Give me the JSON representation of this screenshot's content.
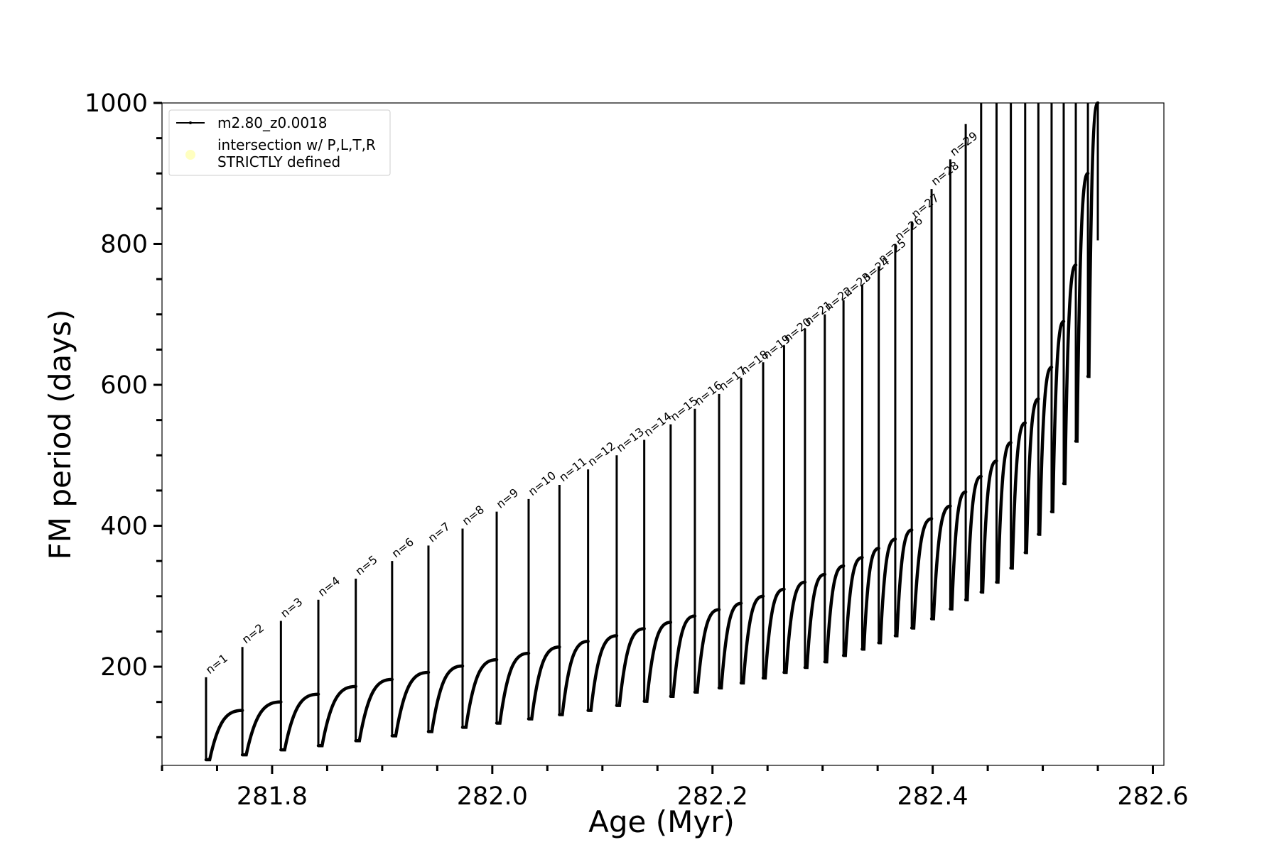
{
  "chart_data": {
    "type": "line",
    "xlabel": "Age (Myr)",
    "ylabel": "FM period (days)",
    "xlim": [
      281.7,
      282.61
    ],
    "ylim": [
      60,
      1000
    ],
    "x_ticks": [
      281.8,
      282.0,
      282.2,
      282.4,
      282.6
    ],
    "x_tick_labels": [
      "281.8",
      "282.0",
      "282.2",
      "282.4",
      "282.6"
    ],
    "y_ticks": [
      200,
      400,
      600,
      800,
      1000
    ],
    "y_tick_labels": [
      "200",
      "400",
      "600",
      "800",
      "1000"
    ],
    "grid": false,
    "legend": {
      "position": "top-left",
      "entries": [
        {
          "label": "m2.80_z0.0018",
          "marker": "line",
          "color": "#000000"
        },
        {
          "label_lines": [
            "intersection w/ P,L,T,R",
            "STRICTLY defined"
          ],
          "marker": "circle",
          "color": "#ffffc0"
        }
      ]
    },
    "series": [
      {
        "name": "m2.80_z0.0018",
        "color": "#000000",
        "pulses": [
          {
            "n": "n=1",
            "age": 281.74,
            "peak": 185,
            "min": 68,
            "plateau": 138
          },
          {
            "n": "n=2",
            "age": 281.773,
            "peak": 228,
            "min": 75,
            "plateau": 150
          },
          {
            "n": "n=3",
            "age": 281.808,
            "peak": 265,
            "min": 82,
            "plateau": 161
          },
          {
            "n": "n=4",
            "age": 281.842,
            "peak": 295,
            "min": 88,
            "plateau": 172
          },
          {
            "n": "n=5",
            "age": 281.876,
            "peak": 325,
            "min": 95,
            "plateau": 182
          },
          {
            "n": "n=6",
            "age": 281.909,
            "peak": 350,
            "min": 102,
            "plateau": 192
          },
          {
            "n": "n=7",
            "age": 281.942,
            "peak": 372,
            "min": 108,
            "plateau": 201
          },
          {
            "n": "n=8",
            "age": 281.973,
            "peak": 396,
            "min": 114,
            "plateau": 210
          },
          {
            "n": "n=9",
            "age": 282.004,
            "peak": 420,
            "min": 120,
            "plateau": 219
          },
          {
            "n": "n=10",
            "age": 282.033,
            "peak": 438,
            "min": 126,
            "plateau": 228
          },
          {
            "n": "n=11",
            "age": 282.061,
            "peak": 458,
            "min": 132,
            "plateau": 236
          },
          {
            "n": "n=12",
            "age": 282.087,
            "peak": 480,
            "min": 138,
            "plateau": 244
          },
          {
            "n": "n=13",
            "age": 282.113,
            "peak": 500,
            "min": 145,
            "plateau": 254
          },
          {
            "n": "n=14",
            "age": 282.138,
            "peak": 522,
            "min": 151,
            "plateau": 263
          },
          {
            "n": "n=15",
            "age": 282.162,
            "peak": 544,
            "min": 158,
            "plateau": 272
          },
          {
            "n": "n=16",
            "age": 282.184,
            "peak": 566,
            "min": 164,
            "plateau": 281
          },
          {
            "n": "n=17",
            "age": 282.206,
            "peak": 587,
            "min": 170,
            "plateau": 290
          },
          {
            "n": "n=18",
            "age": 282.226,
            "peak": 610,
            "min": 177,
            "plateau": 300
          },
          {
            "n": "n=19",
            "age": 282.246,
            "peak": 632,
            "min": 184,
            "plateau": 310
          },
          {
            "n": "n=20",
            "age": 282.265,
            "peak": 656,
            "min": 192,
            "plateau": 320
          },
          {
            "n": "n=21",
            "age": 282.284,
            "peak": 680,
            "min": 199,
            "plateau": 331
          },
          {
            "n": "n=22",
            "age": 282.302,
            "peak": 700,
            "min": 207,
            "plateau": 343
          },
          {
            "n": "n=23",
            "age": 282.319,
            "peak": 720,
            "min": 216,
            "plateau": 355
          },
          {
            "n": "n=24",
            "age": 282.336,
            "peak": 742,
            "min": 225,
            "plateau": 368
          },
          {
            "n": "n=25",
            "age": 282.351,
            "peak": 768,
            "min": 234,
            "plateau": 381
          },
          {
            "n": "n=26",
            "age": 282.366,
            "peak": 800,
            "min": 244,
            "plateau": 394
          },
          {
            "n": "n=27",
            "age": 282.381,
            "peak": 832,
            "min": 255,
            "plateau": 410
          },
          {
            "n": "n=28",
            "age": 282.399,
            "peak": 878,
            "min": 268,
            "plateau": 428
          },
          {
            "n": "n=29",
            "age": 282.416,
            "peak": 920,
            "min": 282,
            "plateau": 448
          },
          {
            "n": "",
            "age": 282.43,
            "peak": 970,
            "min": 295,
            "plateau": 470
          },
          {
            "n": "",
            "age": 282.444,
            "peak": 1000,
            "min": 306,
            "plateau": 492
          },
          {
            "n": "",
            "age": 282.458,
            "peak": 1000,
            "min": 320,
            "plateau": 518
          },
          {
            "n": "",
            "age": 282.471,
            "peak": 1000,
            "min": 340,
            "plateau": 546
          },
          {
            "n": "",
            "age": 282.484,
            "peak": 1000,
            "min": 362,
            "plateau": 580
          },
          {
            "n": "",
            "age": 282.496,
            "peak": 1000,
            "min": 388,
            "plateau": 625
          },
          {
            "n": "",
            "age": 282.508,
            "peak": 1000,
            "min": 420,
            "plateau": 690
          },
          {
            "n": "",
            "age": 282.519,
            "peak": 1000,
            "min": 460,
            "plateau": 770
          },
          {
            "n": "",
            "age": 282.53,
            "peak": 1000,
            "min": 520,
            "plateau": 900
          },
          {
            "n": "",
            "age": 282.541,
            "peak": 1000,
            "min": 612,
            "plateau": 1000
          },
          {
            "n": "",
            "age": 282.55,
            "peak": 1000,
            "min": 805,
            "plateau": 1000
          }
        ]
      }
    ]
  }
}
